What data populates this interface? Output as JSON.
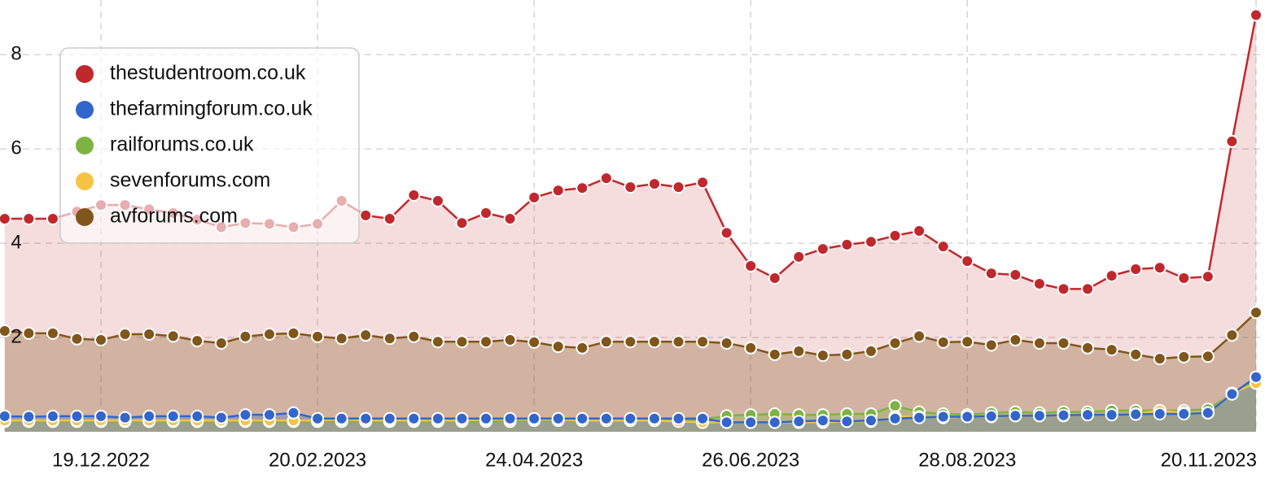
{
  "chart_data": {
    "type": "area",
    "categories": [
      null,
      null,
      null,
      null,
      "19.12.2022",
      null,
      null,
      null,
      null,
      null,
      null,
      null,
      null,
      "20.02.2023",
      null,
      null,
      null,
      null,
      null,
      null,
      null,
      null,
      "24.04.2023",
      null,
      null,
      null,
      null,
      null,
      null,
      null,
      null,
      "26.06.2023",
      null,
      null,
      null,
      null,
      null,
      null,
      null,
      null,
      "28.08.2023",
      null,
      null,
      null,
      null,
      null,
      null,
      null,
      null,
      null,
      null,
      null,
      "20.11.2023"
    ],
    "series": [
      {
        "name": "thestudentroom.co.uk",
        "color": "#c0282d",
        "values": [
          4.52,
          4.52,
          4.52,
          4.67,
          4.81,
          4.81,
          4.72,
          4.64,
          4.5,
          4.34,
          4.43,
          4.41,
          4.34,
          4.41,
          4.9,
          4.59,
          4.52,
          5.02,
          4.9,
          4.43,
          4.64,
          4.52,
          4.97,
          5.12,
          5.17,
          5.38,
          5.19,
          5.26,
          5.19,
          5.29,
          4.22,
          3.52,
          3.26,
          3.71,
          3.88,
          3.97,
          4.03,
          4.16,
          4.26,
          3.93,
          3.62,
          3.36,
          3.33,
          3.14,
          3.03,
          3.03,
          3.31,
          3.45,
          3.48,
          3.26,
          3.29,
          6.16,
          8.84
        ]
      },
      {
        "name": "thefarmingforum.co.uk",
        "color": "#3366cc",
        "values": [
          0.33,
          0.32,
          0.33,
          0.33,
          0.33,
          0.3,
          0.33,
          0.33,
          0.33,
          0.3,
          0.36,
          0.36,
          0.4,
          0.28,
          0.28,
          0.28,
          0.28,
          0.28,
          0.28,
          0.28,
          0.28,
          0.28,
          0.28,
          0.28,
          0.28,
          0.28,
          0.28,
          0.28,
          0.28,
          0.28,
          0.2,
          0.2,
          0.2,
          0.22,
          0.24,
          0.22,
          0.24,
          0.28,
          0.3,
          0.32,
          0.32,
          0.33,
          0.34,
          0.34,
          0.35,
          0.36,
          0.36,
          0.37,
          0.38,
          0.38,
          0.4,
          0.8,
          1.16
        ]
      },
      {
        "name": "railforums.co.uk",
        "color": "#7cb342",
        "values": [
          0.22,
          0.22,
          0.22,
          0.22,
          0.22,
          0.22,
          0.22,
          0.22,
          0.22,
          0.22,
          0.22,
          0.22,
          0.22,
          0.22,
          0.22,
          0.22,
          0.22,
          0.22,
          0.22,
          0.22,
          0.22,
          0.22,
          0.24,
          0.24,
          0.24,
          0.24,
          0.24,
          0.24,
          0.24,
          0.26,
          0.34,
          0.36,
          0.38,
          0.36,
          0.36,
          0.38,
          0.38,
          0.55,
          0.42,
          0.38,
          0.36,
          0.4,
          0.42,
          0.4,
          0.42,
          0.42,
          0.45,
          0.45,
          0.45,
          0.45,
          0.48,
          0.8,
          1.1
        ]
      },
      {
        "name": "sevenforums.com",
        "color": "#f6c344",
        "values": [
          0.24,
          0.24,
          0.24,
          0.24,
          0.24,
          0.24,
          0.24,
          0.24,
          0.24,
          0.24,
          0.24,
          0.24,
          0.24,
          0.24,
          0.26,
          0.24,
          0.24,
          0.24,
          0.24,
          0.24,
          0.26,
          0.26,
          0.26,
          0.26,
          0.24,
          0.24,
          0.24,
          0.24,
          0.22,
          0.2,
          0.2,
          0.2,
          0.2,
          0.2,
          0.2,
          0.22,
          0.22,
          0.32,
          0.32,
          0.3,
          0.32,
          0.32,
          0.34,
          0.34,
          0.34,
          0.36,
          0.36,
          0.38,
          0.45,
          0.4,
          0.4,
          0.82,
          1.03
        ]
      },
      {
        "name": "avforums.com",
        "color": "#80561b",
        "values": [
          2.14,
          2.09,
          2.09,
          1.97,
          1.95,
          2.07,
          2.07,
          2.03,
          1.93,
          1.88,
          2.02,
          2.07,
          2.09,
          2.02,
          1.98,
          2.05,
          1.98,
          2.02,
          1.91,
          1.91,
          1.91,
          1.95,
          1.9,
          1.81,
          1.78,
          1.91,
          1.91,
          1.91,
          1.91,
          1.91,
          1.88,
          1.78,
          1.64,
          1.71,
          1.62,
          1.64,
          1.71,
          1.88,
          2.03,
          1.9,
          1.91,
          1.84,
          1.95,
          1.88,
          1.88,
          1.78,
          1.74,
          1.64,
          1.55,
          1.59,
          1.6,
          2.05,
          2.53
        ]
      }
    ],
    "ylim": [
      0,
      9.16
    ],
    "yticks": [
      2,
      4,
      6,
      8
    ],
    "grid": true,
    "legend": "upper-left"
  }
}
